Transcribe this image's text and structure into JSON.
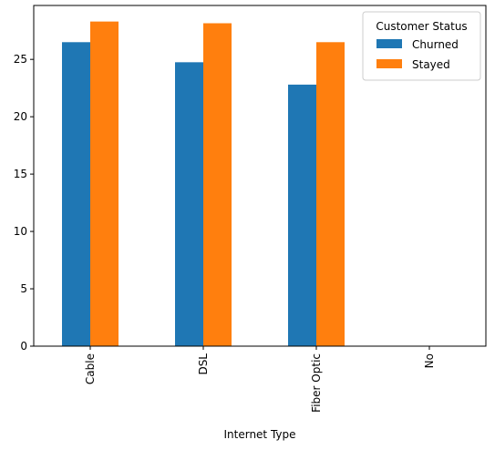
{
  "chart_data": {
    "type": "bar",
    "title": "",
    "xlabel": "Internet Type",
    "ylabel": "",
    "categories": [
      "Cable",
      "DSL",
      "Fiber Optic",
      "No"
    ],
    "series": [
      {
        "name": "Churned",
        "color": "#1f77b4",
        "values": [
          26.5,
          24.75,
          22.8,
          0
        ]
      },
      {
        "name": "Stayed",
        "color": "#ff7f0e",
        "values": [
          28.3,
          28.15,
          26.5,
          0
        ]
      }
    ],
    "yticks": [
      0,
      5,
      10,
      15,
      20,
      25
    ],
    "ylim": [
      0,
      29.7
    ],
    "legend": {
      "title": "Customer Status",
      "placement": "top-right"
    },
    "grid": false
  }
}
